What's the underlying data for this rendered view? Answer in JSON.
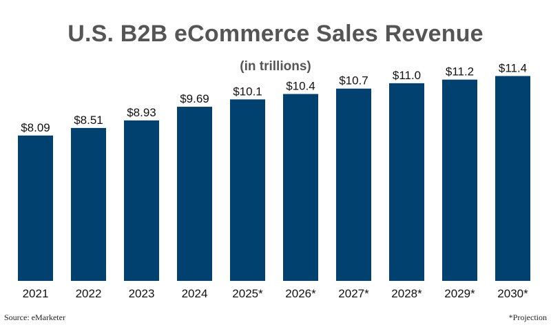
{
  "chart_data": {
    "type": "bar",
    "title": "U.S. B2B eCommerce Sales Revenue",
    "subtitle": "(in trillions)",
    "categories": [
      "2021",
      "2022",
      "2023",
      "2024",
      "2025*",
      "2026*",
      "2027*",
      "2028*",
      "2029*",
      "2030*"
    ],
    "values": [
      8.09,
      8.51,
      8.93,
      9.69,
      10.1,
      10.4,
      10.7,
      11.0,
      11.2,
      11.4
    ],
    "value_labels": [
      "$8.09",
      "$8.51",
      "$8.93",
      "$9.69",
      "$10.1",
      "$10.4",
      "$10.7",
      "$11.0",
      "$11.2",
      "$11.4"
    ],
    "bar_color": "#00416f",
    "ylim": [
      0,
      11.8
    ],
    "grid": false,
    "legend": "none"
  },
  "footer": {
    "source": "Source: eMarketer",
    "note": "*Projection"
  }
}
